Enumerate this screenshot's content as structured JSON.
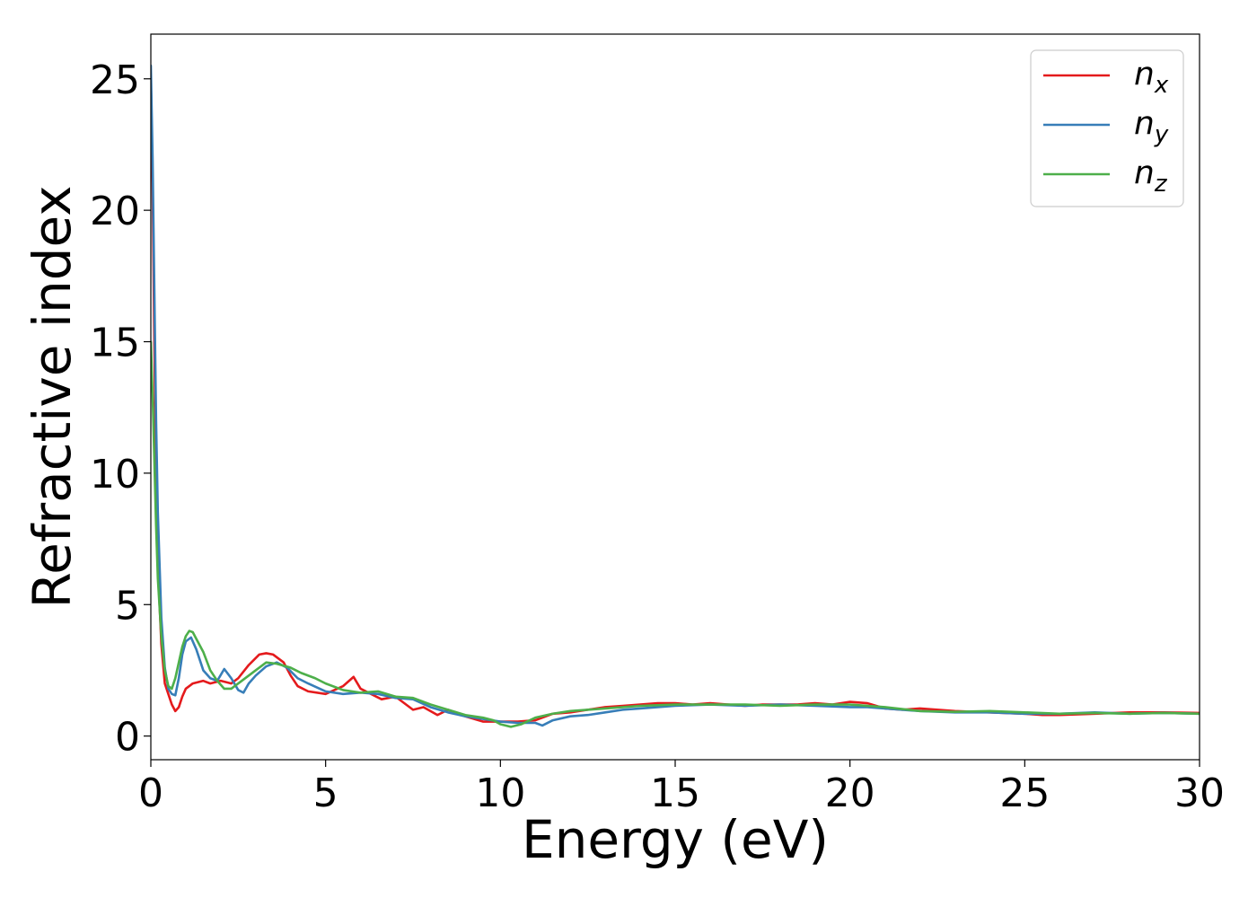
{
  "chart_data": {
    "type": "line",
    "title": "",
    "xlabel": "Energy (eV)",
    "ylabel": "Refractive index",
    "xlim": [
      0,
      30
    ],
    "ylim": [
      -0.9,
      26.7
    ],
    "x_ticks": [
      0,
      5,
      10,
      15,
      20,
      25,
      30
    ],
    "y_ticks": [
      0,
      5,
      10,
      15,
      20,
      25
    ],
    "x_tick_labels": [
      "0",
      "5",
      "10",
      "15",
      "20",
      "25",
      "30"
    ],
    "y_tick_labels": [
      "0",
      "5",
      "10",
      "15",
      "20",
      "25"
    ],
    "grid": false,
    "legend_position": "top-right",
    "series": [
      {
        "name": "n_x",
        "legend_main": "n",
        "legend_sub": "x",
        "color": "#e41a1c",
        "x": [
          0.0,
          0.05,
          0.1,
          0.15,
          0.2,
          0.3,
          0.4,
          0.5,
          0.6,
          0.7,
          0.8,
          0.9,
          1.0,
          1.2,
          1.5,
          1.7,
          2.0,
          2.3,
          2.5,
          2.8,
          3.1,
          3.3,
          3.5,
          3.8,
          4.0,
          4.2,
          4.5,
          5.0,
          5.5,
          5.8,
          6.0,
          6.3,
          6.6,
          7.0,
          7.5,
          7.8,
          8.2,
          8.5,
          9.0,
          9.5,
          10.0,
          10.5,
          11.0,
          11.5,
          12.0,
          12.5,
          13.0,
          13.5,
          14.0,
          14.5,
          15.0,
          15.5,
          16.0,
          16.5,
          17.0,
          17.5,
          18.0,
          18.5,
          19.0,
          19.5,
          20.0,
          20.5,
          21.0,
          21.5,
          22.0,
          23.0,
          24.0,
          25.0,
          25.5,
          26.0,
          27.0,
          28.0,
          29.0,
          30.0
        ],
        "y": [
          25.0,
          21.0,
          15.0,
          10.0,
          6.5,
          3.5,
          2.0,
          1.6,
          1.2,
          0.95,
          1.1,
          1.5,
          1.8,
          2.0,
          2.1,
          2.0,
          2.1,
          2.0,
          2.2,
          2.7,
          3.1,
          3.15,
          3.1,
          2.8,
          2.3,
          1.9,
          1.7,
          1.6,
          1.9,
          2.25,
          1.8,
          1.6,
          1.4,
          1.5,
          1.0,
          1.1,
          0.8,
          1.0,
          0.75,
          0.55,
          0.55,
          0.55,
          0.6,
          0.85,
          0.9,
          1.0,
          1.1,
          1.15,
          1.2,
          1.25,
          1.25,
          1.2,
          1.25,
          1.2,
          1.15,
          1.2,
          1.2,
          1.2,
          1.25,
          1.2,
          1.3,
          1.25,
          1.05,
          1.0,
          1.05,
          0.95,
          0.9,
          0.85,
          0.8,
          0.8,
          0.85,
          0.9,
          0.9,
          0.88
        ]
      },
      {
        "name": "n_y",
        "legend_main": "n",
        "legend_sub": "y",
        "color": "#377eb8",
        "x": [
          0.0,
          0.05,
          0.1,
          0.15,
          0.2,
          0.3,
          0.4,
          0.5,
          0.6,
          0.7,
          0.8,
          0.9,
          1.0,
          1.15,
          1.3,
          1.5,
          1.7,
          1.9,
          2.1,
          2.3,
          2.5,
          2.65,
          2.8,
          3.0,
          3.3,
          3.6,
          3.9,
          4.2,
          4.5,
          5.0,
          5.5,
          6.0,
          6.5,
          7.0,
          7.5,
          8.0,
          8.5,
          9.0,
          9.5,
          10.0,
          10.5,
          11.0,
          11.2,
          11.5,
          12.0,
          12.5,
          13.0,
          13.5,
          14.0,
          14.5,
          15.0,
          16.0,
          17.0,
          18.0,
          19.0,
          20.0,
          20.5,
          21.0,
          22.0,
          23.0,
          24.0,
          25.0,
          26.0,
          27.0,
          28.0,
          29.0,
          30.0
        ],
        "y": [
          25.5,
          22.0,
          17.0,
          12.0,
          8.5,
          4.5,
          2.6,
          1.8,
          1.6,
          1.55,
          2.2,
          3.1,
          3.6,
          3.75,
          3.3,
          2.5,
          2.2,
          2.1,
          2.55,
          2.2,
          1.75,
          1.65,
          2.0,
          2.3,
          2.65,
          2.8,
          2.6,
          2.2,
          2.0,
          1.7,
          1.6,
          1.65,
          1.6,
          1.45,
          1.4,
          1.1,
          0.9,
          0.75,
          0.65,
          0.55,
          0.5,
          0.5,
          0.4,
          0.6,
          0.75,
          0.8,
          0.9,
          1.0,
          1.05,
          1.1,
          1.15,
          1.2,
          1.15,
          1.2,
          1.15,
          1.1,
          1.1,
          1.05,
          0.95,
          0.9,
          0.9,
          0.85,
          0.85,
          0.9,
          0.85,
          0.88,
          0.85
        ]
      },
      {
        "name": "n_z",
        "legend_main": "n",
        "legend_sub": "z",
        "color": "#4daf4a",
        "x": [
          0.0,
          0.05,
          0.1,
          0.15,
          0.2,
          0.3,
          0.4,
          0.5,
          0.6,
          0.7,
          0.8,
          0.9,
          1.0,
          1.1,
          1.2,
          1.3,
          1.5,
          1.7,
          1.9,
          2.1,
          2.3,
          2.6,
          3.0,
          3.3,
          3.6,
          4.0,
          4.3,
          4.7,
          5.0,
          5.5,
          6.0,
          6.5,
          7.0,
          7.5,
          8.0,
          8.5,
          9.0,
          9.5,
          9.8,
          10.0,
          10.3,
          10.6,
          11.0,
          11.5,
          12.0,
          13.0,
          14.0,
          15.0,
          16.0,
          17.0,
          18.0,
          19.0,
          20.0,
          21.0,
          22.0,
          23.0,
          24.0,
          25.0,
          26.0,
          27.0,
          28.0,
          29.0,
          30.0
        ],
        "y": [
          15.0,
          13.0,
          10.5,
          8.0,
          6.0,
          3.8,
          2.5,
          1.9,
          1.8,
          2.2,
          2.8,
          3.4,
          3.8,
          4.0,
          3.95,
          3.7,
          3.2,
          2.5,
          2.1,
          1.8,
          1.8,
          2.1,
          2.5,
          2.8,
          2.75,
          2.6,
          2.4,
          2.2,
          2.0,
          1.75,
          1.65,
          1.7,
          1.5,
          1.45,
          1.2,
          1.0,
          0.8,
          0.7,
          0.6,
          0.45,
          0.35,
          0.45,
          0.7,
          0.85,
          0.95,
          1.05,
          1.15,
          1.2,
          1.2,
          1.2,
          1.15,
          1.2,
          1.2,
          1.1,
          0.95,
          0.92,
          0.95,
          0.9,
          0.85,
          0.88,
          0.85,
          0.88,
          0.85
        ]
      }
    ]
  }
}
